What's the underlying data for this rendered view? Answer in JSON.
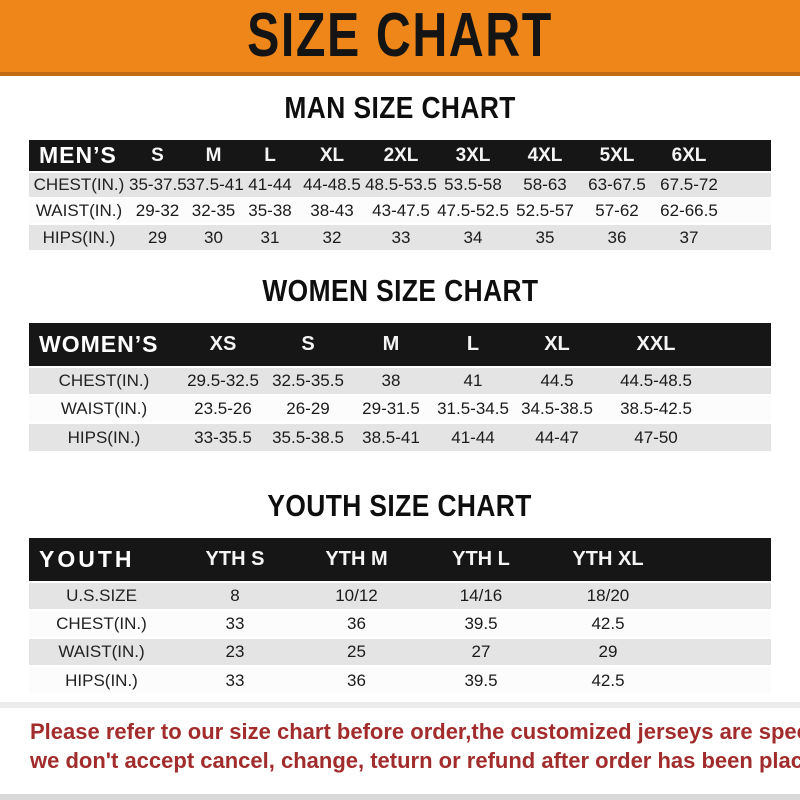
{
  "banner": {
    "title": "SIZE CHART",
    "bg_color": "#EE8619",
    "edge_color": "#C06A16",
    "text_color": "#141414"
  },
  "sections": {
    "man": {
      "title": "MAN SIZE CHART"
    },
    "women": {
      "title": "WOMEN SIZE CHART"
    },
    "youth": {
      "title": "YOUTH SIZE CHART"
    }
  },
  "tables": {
    "men": {
      "header_label": "MEN’S",
      "sizes": [
        "S",
        "M",
        "L",
        "XL",
        "2XL",
        "3XL",
        "4XL",
        "5XL",
        "6XL"
      ],
      "rows": [
        {
          "label": "CHEST(IN.)",
          "values": [
            "35-37.5",
            "37.5-41",
            "41-44",
            "44-48.5",
            "48.5-53.5",
            "53.5-58",
            "58-63",
            "63-67.5",
            "67.5-72"
          ]
        },
        {
          "label": "WAIST(IN.)",
          "values": [
            "29-32",
            "32-35",
            "35-38",
            "38-43",
            "43-47.5",
            "47.5-52.5",
            "52.5-57",
            "57-62",
            "62-66.5"
          ]
        },
        {
          "label": "HIPS(IN.)",
          "values": [
            "29",
            "30",
            "31",
            "32",
            "33",
            "34",
            "35",
            "36",
            "37"
          ]
        }
      ]
    },
    "women": {
      "header_label": "WOMEN’S",
      "sizes": [
        "XS",
        "S",
        "M",
        "L",
        "XL",
        "XXL"
      ],
      "rows": [
        {
          "label": "CHEST(IN.)",
          "values": [
            "29.5-32.5",
            "32.5-35.5",
            "38",
            "41",
            "44.5",
            "44.5-48.5"
          ]
        },
        {
          "label": "WAIST(IN.)",
          "values": [
            "23.5-26",
            "26-29",
            "29-31.5",
            "31.5-34.5",
            "34.5-38.5",
            "38.5-42.5"
          ]
        },
        {
          "label": "HIPS(IN.)",
          "values": [
            "33-35.5",
            "35.5-38.5",
            "38.5-41",
            "41-44",
            "44-47",
            "47-50"
          ]
        }
      ]
    },
    "youth": {
      "header_label": "YOUTH",
      "sizes": [
        "YTH S",
        "YTH M",
        "YTH L",
        "YTH XL"
      ],
      "rows": [
        {
          "label": "U.S.SIZE",
          "values": [
            "8",
            "10/12",
            "14/16",
            "18/20"
          ]
        },
        {
          "label": "CHEST(IN.)",
          "values": [
            "33",
            "36",
            "39.5",
            "42.5"
          ]
        },
        {
          "label": "WAIST(IN.)",
          "values": [
            "23",
            "25",
            "27",
            "29"
          ]
        },
        {
          "label": "HIPS(IN.)",
          "values": [
            "33",
            "36",
            "39.5",
            "42.5"
          ]
        }
      ]
    }
  },
  "footer": {
    "line1": "Please refer to our size chart before order,the customized jerseys are special products,",
    "line2": "we don't accept cancel, change, teturn or refund after order has been placed!",
    "text_color": "#A22C2C"
  },
  "colors": {
    "band_bg": "#161616",
    "row_stripe": "#E4E4E4",
    "row_plain": "#FCFCFC"
  }
}
